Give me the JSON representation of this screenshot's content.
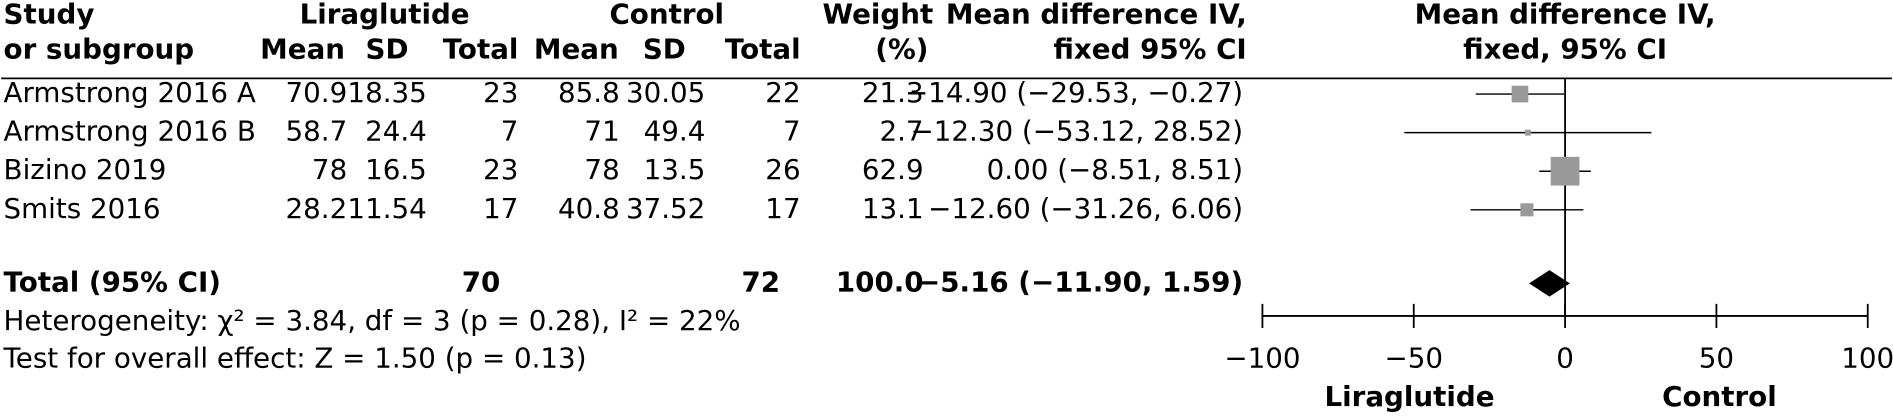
{
  "chart_data": {
    "type": "forest",
    "header": {
      "study": [
        "Study",
        "or subgroup"
      ],
      "group1": "Liraglutide",
      "group2": "Control",
      "columns": [
        "Mean",
        "SD",
        "Total",
        "Mean",
        "SD",
        "Total"
      ],
      "weight": [
        "Weight",
        "(%)"
      ],
      "effect": [
        "Mean difference IV,",
        "fixed 95% CI"
      ],
      "plot": [
        "Mean difference IV,",
        "fixed, 95% CI"
      ]
    },
    "studies": [
      {
        "name": "Armstrong 2016 A",
        "cells": [
          70.9,
          18.35,
          23,
          85.8,
          30.05,
          22
        ],
        "weight": 21.3,
        "md": -14.9,
        "lo": -29.53,
        "hi": -0.27,
        "ci_label": "−14.90 (−29.53, −0.27)"
      },
      {
        "name": "Armstrong 2016 B",
        "cells": [
          58.7,
          24.4,
          7,
          71,
          49.4,
          7
        ],
        "weight": 2.7,
        "md": -12.3,
        "lo": -53.12,
        "hi": 28.52,
        "ci_label": "−12.30 (−53.12, 28.52)"
      },
      {
        "name": "Bizino 2019",
        "cells": [
          78,
          16.5,
          23,
          78,
          13.5,
          26
        ],
        "weight": 62.9,
        "md": 0,
        "lo": -8.51,
        "hi": 8.51,
        "ci_label": "0.00 (−8.51, 8.51)"
      },
      {
        "name": "Smits 2016",
        "cells": [
          28.2,
          11.54,
          17,
          40.8,
          37.52,
          17
        ],
        "weight": 13.1,
        "md": -12.6,
        "lo": -31.26,
        "hi": 6.06,
        "ci_label": "−12.60 (−31.26, 6.06)"
      }
    ],
    "total": {
      "name": "Total (95% CI)",
      "n1": 70,
      "n2": 72,
      "weight": {
        "value": 100,
        "label": "100.0"
      },
      "md": -5.16,
      "lo": -11.9,
      "hi": 1.59,
      "ci_label": "−5.16 (−11.90, 1.59)"
    },
    "heterogeneity": "Heterogeneity: χ² = 3.84, df = 3 (p = 0.28), I² = 22%",
    "overall_effect": "Test for overall effect: Z = 1.50 (p = 0.13)",
    "xlim": [
      -100,
      100
    ],
    "xticks": [
      {
        "value": -100,
        "label": "−100"
      },
      {
        "value": -50,
        "label": "−50"
      },
      0,
      50,
      100
    ],
    "xlabel_left": "Liraglutide",
    "xlabel_right": "Control",
    "square_color": "#999999",
    "diamond_color": "#000000"
  }
}
